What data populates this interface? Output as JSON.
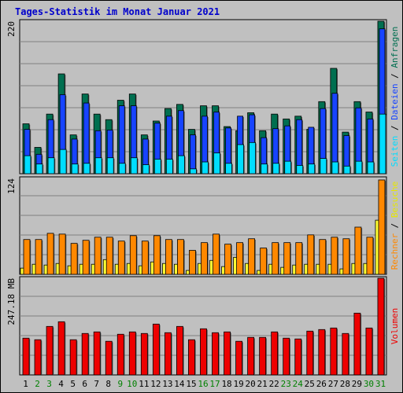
{
  "title": "Tages-Statistik im Monat Januar 2021",
  "chart_data": [
    {
      "type": "bar",
      "name": "hits-files-pages",
      "categories": [
        "1",
        "2",
        "3",
        "4",
        "5",
        "6",
        "7",
        "8",
        "9",
        "10",
        "11",
        "12",
        "13",
        "14",
        "15",
        "16",
        "17",
        "18",
        "19",
        "20",
        "21",
        "22",
        "23",
        "24",
        "25",
        "26",
        "27",
        "28",
        "29",
        "30",
        "31"
      ],
      "weekend_days": [
        "2",
        "3",
        "9",
        "10",
        "16",
        "17",
        "23",
        "24",
        "30",
        "31"
      ],
      "ymax_label": "220",
      "ylim": [
        0,
        220
      ],
      "series": [
        {
          "name": "Anfragen",
          "color": "#006f50",
          "values": [
            72,
            38,
            86,
            144,
            56,
            115,
            86,
            78,
            106,
            115,
            56,
            76,
            94,
            100,
            64,
            98,
            98,
            68,
            62,
            88,
            62,
            86,
            79,
            83,
            64,
            104,
            152,
            60,
            104,
            89,
            220
          ]
        },
        {
          "name": "Dateien",
          "color": "#1744ff",
          "values": [
            64,
            28,
            78,
            114,
            50,
            102,
            62,
            63,
            98,
            98,
            50,
            73,
            83,
            91,
            56,
            83,
            89,
            66,
            83,
            85,
            52,
            65,
            69,
            78,
            67,
            94,
            116,
            55,
            95,
            79,
            209
          ]
        },
        {
          "name": "Seiten",
          "color": "#00ddff",
          "values": [
            26,
            14,
            23,
            35,
            14,
            15,
            23,
            23,
            15,
            23,
            13,
            21,
            21,
            26,
            7,
            17,
            30,
            15,
            42,
            45,
            14,
            15,
            18,
            12,
            14,
            22,
            17,
            11,
            18,
            17,
            86
          ]
        }
      ],
      "legend": [
        "Anfragen",
        "Dateien",
        "Seiten"
      ]
    },
    {
      "type": "bar",
      "name": "visits-sites",
      "categories": [
        "1",
        "2",
        "3",
        "4",
        "5",
        "6",
        "7",
        "8",
        "9",
        "10",
        "11",
        "12",
        "13",
        "14",
        "15",
        "16",
        "17",
        "18",
        "19",
        "20",
        "21",
        "22",
        "23",
        "24",
        "25",
        "26",
        "27",
        "28",
        "29",
        "30",
        "31"
      ],
      "ymax_label": "124",
      "ylim": [
        0,
        124
      ],
      "series": [
        {
          "name": "Besuche",
          "color": "#ffff33",
          "values": [
            8,
            13,
            12,
            14,
            11,
            13,
            13,
            19,
            13,
            14,
            11,
            16,
            14,
            13,
            5,
            14,
            18,
            10,
            22,
            14,
            5,
            13,
            9,
            12,
            13,
            13,
            13,
            7,
            14,
            14,
            70
          ]
        },
        {
          "name": "Rechner",
          "color": "#ff8800",
          "values": [
            45,
            45,
            53,
            52,
            40,
            44,
            48,
            48,
            43,
            50,
            43,
            50,
            45,
            45,
            31,
            41,
            52,
            39,
            41,
            46,
            34,
            41,
            41,
            41,
            51,
            45,
            48,
            46,
            61,
            48,
            122
          ]
        }
      ],
      "legend": [
        "Besuche",
        "Rechner"
      ]
    },
    {
      "type": "bar",
      "name": "volume",
      "categories": [
        "1",
        "2",
        "3",
        "4",
        "5",
        "6",
        "7",
        "8",
        "9",
        "10",
        "11",
        "12",
        "13",
        "14",
        "15",
        "16",
        "17",
        "18",
        "19",
        "20",
        "21",
        "22",
        "23",
        "24",
        "25",
        "26",
        "27",
        "28",
        "29",
        "30",
        "31"
      ],
      "ymax_label": "247.18 MB",
      "ylim": [
        0,
        247.18
      ],
      "series": [
        {
          "name": "Volumen",
          "color": "#ee0000",
          "values": [
            94,
            90,
            124,
            136,
            90,
            106,
            110,
            86,
            104,
            110,
            106,
            130,
            108,
            124,
            90,
            118,
            108,
            110,
            86,
            96,
            96,
            110,
            94,
            92,
            112,
            116,
            120,
            106,
            158,
            120,
            247.18
          ]
        }
      ],
      "legend": [
        "Volumen"
      ]
    }
  ]
}
